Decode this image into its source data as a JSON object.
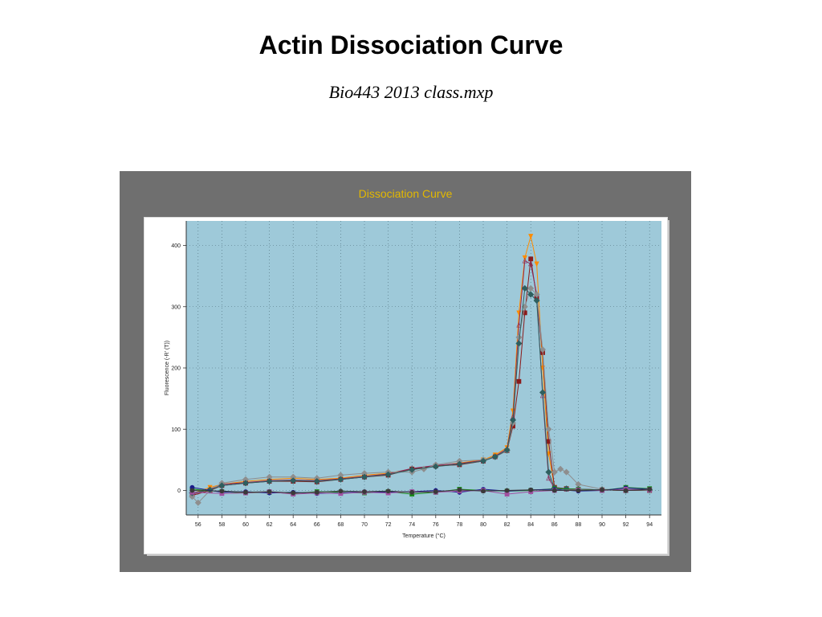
{
  "slide": {
    "title": "Actin Dissociation Curve",
    "subtitle": "Bio443 2013 class.mxp"
  },
  "panel": {
    "title": "Dissociation Curve",
    "title_color": "#e3b800",
    "frame_color": "#6f6f6f",
    "plot_bg": "#9ec9d9"
  },
  "chart_data": {
    "type": "line",
    "title": "Dissociation Curve",
    "xlabel": "Temperature (°C)",
    "ylabel": "Fluorescence (-R' (T))",
    "xlim": [
      55,
      95
    ],
    "ylim": [
      -40,
      440
    ],
    "xticks": [
      56,
      58,
      60,
      62,
      64,
      66,
      68,
      70,
      72,
      74,
      76,
      78,
      80,
      82,
      84,
      86,
      88,
      90,
      92,
      94
    ],
    "yticks": [
      0,
      100,
      200,
      300,
      400
    ],
    "grid": true,
    "series": [
      {
        "color": "#ff8c00",
        "marker": "tri-down",
        "x": [
          55.5,
          57,
          58,
          60,
          62,
          64,
          66,
          68,
          70,
          72,
          74,
          76,
          78,
          80,
          81,
          82,
          82.5,
          83,
          83.5,
          84,
          84.5,
          85,
          85.5,
          86,
          87,
          88,
          90,
          92,
          94
        ],
        "y": [
          -5,
          5,
          10,
          15,
          18,
          20,
          18,
          20,
          25,
          28,
          35,
          40,
          45,
          50,
          58,
          70,
          130,
          290,
          380,
          415,
          370,
          200,
          60,
          5,
          3,
          2,
          1,
          0,
          2
        ]
      },
      {
        "color": "#8b1a1a",
        "marker": "square",
        "x": [
          55.5,
          57,
          58,
          60,
          62,
          64,
          66,
          68,
          70,
          72,
          74,
          76,
          78,
          80,
          81,
          82,
          82.5,
          83,
          83.5,
          84,
          84.5,
          85,
          85.5,
          86,
          87,
          88,
          90,
          92,
          94
        ],
        "y": [
          -8,
          0,
          8,
          12,
          15,
          15,
          14,
          18,
          22,
          25,
          35,
          40,
          42,
          48,
          55,
          65,
          105,
          178,
          290,
          378,
          315,
          225,
          80,
          5,
          3,
          2,
          1,
          0,
          0
        ]
      },
      {
        "color": "#8b2a5a",
        "marker": "tri-up",
        "x": [
          55.5,
          57,
          58,
          60,
          62,
          64,
          66,
          68,
          70,
          72,
          74,
          76,
          78,
          80,
          81,
          82,
          82.5,
          83,
          83.5,
          84,
          84.5,
          85,
          85.5,
          86,
          87,
          88,
          90,
          92,
          94
        ],
        "y": [
          -6,
          2,
          10,
          13,
          16,
          17,
          16,
          19,
          23,
          27,
          36,
          41,
          44,
          49,
          56,
          68,
          120,
          270,
          375,
          370,
          320,
          155,
          20,
          4,
          2,
          2,
          1,
          0,
          1
        ]
      },
      {
        "color": "#8e8e8e",
        "marker": "diamond",
        "x": [
          55.5,
          56,
          57,
          58,
          60,
          62,
          64,
          66,
          68,
          70,
          72,
          74,
          75,
          76,
          78,
          80,
          81,
          82,
          82.5,
          83,
          83.5,
          84,
          84.5,
          85,
          85.5,
          86,
          86.5,
          87,
          88,
          90,
          92,
          94
        ],
        "y": [
          -10,
          -20,
          0,
          12,
          18,
          22,
          22,
          20,
          25,
          28,
          30,
          30,
          35,
          42,
          48,
          50,
          55,
          65,
          110,
          250,
          300,
          330,
          320,
          230,
          100,
          30,
          35,
          30,
          10,
          2,
          1,
          0
        ]
      },
      {
        "color": "#2e5f5f",
        "marker": "diamond",
        "x": [
          55.5,
          57,
          58,
          60,
          62,
          64,
          66,
          68,
          70,
          72,
          74,
          76,
          78,
          80,
          81,
          82,
          82.5,
          83,
          83.5,
          84,
          84.5,
          85,
          85.5,
          86,
          87,
          88,
          90,
          92,
          94
        ],
        "y": [
          -4,
          1,
          8,
          12,
          15,
          16,
          15,
          18,
          22,
          26,
          34,
          39,
          43,
          48,
          55,
          66,
          115,
          240,
          330,
          320,
          310,
          160,
          30,
          4,
          3,
          2,
          1,
          0,
          1
        ]
      },
      {
        "color": "#1a8a1a",
        "marker": "square",
        "x": [
          55.5,
          58,
          60,
          62,
          64,
          66,
          68,
          70,
          72,
          74,
          76,
          78,
          80,
          82,
          84,
          86,
          88,
          90,
          92,
          94
        ],
        "y": [
          2,
          -2,
          -4,
          -3,
          -5,
          -2,
          -3,
          -4,
          -2,
          -6,
          -3,
          2,
          0,
          -1,
          0,
          3,
          2,
          0,
          5,
          3
        ]
      },
      {
        "color": "#1a1a8a",
        "marker": "circle",
        "x": [
          55.5,
          58,
          60,
          62,
          64,
          66,
          68,
          70,
          72,
          74,
          76,
          78,
          80,
          82,
          84,
          86,
          88,
          90,
          92,
          94
        ],
        "y": [
          5,
          -3,
          -2,
          -4,
          -3,
          -5,
          -4,
          -2,
          -3,
          -2,
          0,
          -3,
          2,
          -1,
          1,
          2,
          -1,
          0,
          4,
          2
        ]
      },
      {
        "color": "#a050a0",
        "marker": "square",
        "x": [
          55.5,
          58,
          60,
          62,
          64,
          66,
          68,
          70,
          72,
          74,
          76,
          78,
          80,
          82,
          84,
          86,
          88,
          90,
          92,
          94
        ],
        "y": [
          -3,
          -5,
          -4,
          -2,
          -6,
          -4,
          -5,
          -3,
          -4,
          -2,
          -3,
          -1,
          0,
          -6,
          -2,
          0,
          1,
          0,
          2,
          1
        ]
      },
      {
        "color": "#3a3a3a",
        "marker": "circle",
        "x": [
          55.5,
          58,
          60,
          62,
          64,
          66,
          68,
          70,
          72,
          74,
          76,
          78,
          80,
          82,
          84,
          86,
          88,
          90,
          92,
          94
        ],
        "y": [
          0,
          -1,
          -3,
          -2,
          -4,
          -3,
          -1,
          -2,
          -1,
          -3,
          -2,
          1,
          -1,
          0,
          1,
          0,
          0,
          1,
          0,
          2
        ]
      }
    ]
  }
}
